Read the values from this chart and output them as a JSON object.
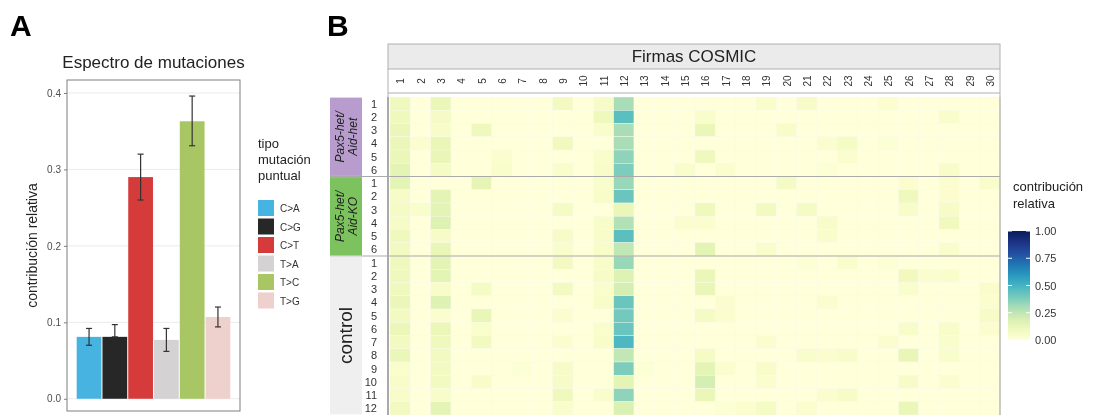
{
  "chart_data": [
    {
      "type": "bar",
      "title": "Espectro de mutaciones",
      "ylabel": "contribución relativa",
      "legend_title": "tipo mutación puntual",
      "legend": "right",
      "grid": "y",
      "annotations": [
        "A"
      ],
      "categories": [
        null
      ],
      "ylim": [
        -0.016,
        0.417
      ],
      "yticks": [
        {
          "value": 0,
          "label": "0.0"
        },
        0.1,
        0.2,
        0.3,
        0.4
      ],
      "series": [
        {
          "name": "C>A",
          "color": "#46b3e0",
          "values": [
            0.081
          ],
          "errors": [
            [
              0.07,
              0.092
            ]
          ]
        },
        {
          "name": "C>G",
          "color": "#272727",
          "values": [
            0.081
          ],
          "errors": [
            [
              0.081,
              0.097
            ]
          ]
        },
        {
          "name": "C>T",
          "color": "#d63b3b",
          "values": [
            0.29
          ],
          "errors": [
            [
              0.26,
              0.32
            ]
          ]
        },
        {
          "name": "T>A",
          "color": "#d4d2d3",
          "values": [
            0.077
          ],
          "errors": [
            [
              0.062,
              0.092
            ]
          ]
        },
        {
          "name": "T>C",
          "color": "#a8c663",
          "values": [
            0.363
          ],
          "errors": [
            [
              0.331,
              0.396
            ]
          ]
        },
        {
          "name": "T>G",
          "color": "#eed0cd",
          "values": [
            0.107
          ],
          "errors": [
            [
              0.094,
              0.12
            ]
          ]
        }
      ]
    },
    {
      "type": "heatmap",
      "xlabel": "Firmas COSMIC",
      "annotations": [
        "B",
        "Pax5-het/Aid-het",
        "Pax5-het/Aid-KO",
        "control"
      ],
      "clabel": "contribución relativa",
      "clim": [
        0,
        1
      ],
      "cticks": [
        {
          "value": 0,
          "label": "0.00"
        },
        {
          "value": 0.25,
          "label": "0.25"
        },
        {
          "value": 0.5,
          "label": "0.50"
        },
        {
          "value": 0.75,
          "label": "0.75"
        },
        {
          "value": 1,
          "label": "1.00"
        }
      ],
      "categories": [
        "1",
        "2",
        "3",
        "4",
        "5",
        "6",
        "7",
        "8",
        "9",
        "10",
        "11",
        "12",
        "13",
        "14",
        "15",
        "16",
        "17",
        "18",
        "19",
        "20",
        "21",
        "22",
        "23",
        "24",
        "25",
        "26",
        "27",
        "28",
        "29",
        "30"
      ],
      "y_categories": [
        "1",
        "2",
        "3",
        "4",
        "5",
        "6",
        "1",
        "2",
        "3",
        "4",
        "5",
        "6",
        "1",
        "2",
        "3",
        "4",
        "5",
        "6",
        "7",
        "8",
        "9",
        "10",
        "11",
        "12"
      ],
      "cells": [
        [
          0.1,
          0,
          0.12,
          0,
          0,
          0,
          0,
          0,
          0.08,
          0,
          0.06,
          0.3,
          0,
          0,
          0,
          0,
          0,
          0,
          0.04,
          0,
          0.06,
          0,
          0,
          0,
          0.03,
          0,
          0,
          0,
          0,
          0
        ],
        [
          0.1,
          0,
          0.07,
          0,
          0,
          0,
          0,
          0,
          0,
          0,
          0.1,
          0.45,
          0,
          0,
          0,
          0.04,
          0,
          0,
          0,
          0,
          0,
          0,
          0,
          0,
          0,
          0,
          0,
          0.04,
          0,
          0
        ],
        [
          0.12,
          0,
          0.05,
          0,
          0.1,
          0,
          0,
          0,
          0,
          0,
          0.04,
          0.3,
          0,
          0,
          0,
          0.12,
          0,
          0,
          0,
          0.05,
          0,
          0,
          0,
          0,
          0,
          0,
          0,
          0,
          0,
          0
        ],
        [
          0.12,
          0.03,
          0.13,
          0,
          0,
          0,
          0,
          0,
          0.09,
          0,
          0,
          0.3,
          0,
          0,
          0,
          0,
          0,
          0,
          0,
          0,
          0,
          0.03,
          0.07,
          0,
          0.02,
          0,
          0,
          0,
          0,
          0
        ],
        [
          0.12,
          0,
          0.13,
          0,
          0,
          0.03,
          0,
          0,
          0,
          0,
          0.04,
          0.35,
          0,
          0,
          0,
          0.1,
          0,
          0,
          0,
          0,
          0,
          0,
          0.03,
          0,
          0,
          0,
          0,
          0,
          0,
          0
        ],
        [
          0.15,
          0,
          0.07,
          0,
          0,
          0.04,
          0,
          0,
          0.04,
          0,
          0.05,
          0.38,
          0,
          0,
          0.04,
          0,
          0.03,
          0,
          0,
          0,
          0,
          0.02,
          0,
          0,
          0,
          0,
          0,
          0.05,
          0,
          0
        ],
        [
          0.15,
          0,
          0,
          0,
          0.14,
          0,
          0,
          0,
          0,
          0,
          0.04,
          0.33,
          0,
          0,
          0,
          0,
          0,
          0,
          0,
          0.07,
          0,
          0,
          0,
          0,
          0,
          0.03,
          0,
          0.03,
          0,
          0.04
        ],
        [
          0.06,
          0,
          0.15,
          0,
          0,
          0,
          0,
          0,
          0,
          0,
          0.05,
          0.42,
          0,
          0,
          0,
          0,
          0,
          0,
          0,
          0,
          0,
          0,
          0,
          0,
          0,
          0.1,
          0,
          0.03,
          0,
          0
        ],
        [
          0.07,
          0.04,
          0.15,
          0,
          0,
          0,
          0,
          0,
          0.07,
          0,
          0,
          0.12,
          0,
          0,
          0,
          0.1,
          0,
          0,
          0.08,
          0,
          0.07,
          0,
          0,
          0,
          0,
          0.05,
          0,
          0.06,
          0,
          0
        ],
        [
          0.06,
          0,
          0.17,
          0,
          0,
          0,
          0,
          0,
          0,
          0,
          0.05,
          0.28,
          0,
          0,
          0.03,
          0.03,
          0,
          0,
          0,
          0,
          0,
          0.05,
          0,
          0,
          0,
          0,
          0,
          0.09,
          0,
          0
        ],
        [
          0.1,
          0,
          0.06,
          0,
          0,
          0,
          0,
          0,
          0.06,
          0,
          0.05,
          0.45,
          0,
          0,
          0,
          0,
          0,
          0,
          0,
          0,
          0,
          0.04,
          0,
          0,
          0,
          0,
          0,
          0,
          0,
          0
        ],
        [
          0.08,
          0,
          0.13,
          0,
          0,
          0,
          0,
          0,
          0.04,
          0,
          0.05,
          0.25,
          0,
          0,
          0,
          0.15,
          0,
          0,
          0.04,
          0,
          0,
          0,
          0,
          0,
          0,
          0,
          0,
          0.04,
          0,
          0
        ],
        [
          0.1,
          0,
          0.15,
          0,
          0,
          0,
          0,
          0,
          0.08,
          0,
          0.05,
          0.33,
          0,
          0,
          0,
          0,
          0,
          0,
          0,
          0,
          0.02,
          0,
          0.04,
          0,
          0.02,
          0,
          0,
          0,
          0,
          0
        ],
        [
          0.1,
          0,
          0.15,
          0,
          0,
          0,
          0,
          0,
          0,
          0,
          0.06,
          0.17,
          0,
          0,
          0,
          0.12,
          0,
          0,
          0,
          0,
          0,
          0,
          0,
          0,
          0,
          0.09,
          0.03,
          0.04,
          0,
          0
        ],
        [
          0.1,
          0,
          0.05,
          0,
          0.07,
          0,
          0,
          0,
          0.08,
          0,
          0.04,
          0.2,
          0,
          0,
          0,
          0.13,
          0,
          0,
          0,
          0,
          0,
          0,
          0,
          0,
          0,
          0.04,
          0,
          0,
          0,
          0.04
        ],
        [
          0.12,
          0,
          0.17,
          0,
          0,
          0,
          0,
          0,
          0,
          0,
          0.05,
          0.42,
          0,
          0,
          0,
          0,
          0.03,
          0,
          0,
          0,
          0,
          0.03,
          0,
          0,
          0,
          0,
          0,
          0,
          0,
          0.03
        ],
        [
          0.08,
          0,
          0.03,
          0,
          0.13,
          0,
          0,
          0,
          0.03,
          0,
          0,
          0.4,
          0,
          0,
          0,
          0.07,
          0.03,
          0,
          0,
          0,
          0,
          0,
          0,
          0,
          0,
          0,
          0,
          0,
          0,
          0.06
        ],
        [
          0.12,
          0,
          0.12,
          0,
          0.04,
          0,
          0,
          0,
          0,
          0,
          0.04,
          0.42,
          0,
          0,
          0,
          0,
          0,
          0,
          0,
          0,
          0,
          0,
          0,
          0,
          0,
          0.05,
          0,
          0.05,
          0,
          0.03
        ],
        [
          0.08,
          0,
          0.1,
          0,
          0.08,
          0,
          0,
          0,
          0.03,
          0,
          0.05,
          0.48,
          0,
          0,
          0,
          0,
          0,
          0,
          0.03,
          0,
          0,
          0,
          0,
          0,
          0.03,
          0,
          0,
          0.04,
          0,
          0
        ],
        [
          0.12,
          0,
          0.08,
          0,
          0,
          0,
          0,
          0,
          0,
          0,
          0,
          0.25,
          0,
          0,
          0,
          0.07,
          0,
          0,
          0,
          0,
          0.04,
          0.03,
          0.05,
          0,
          0,
          0.13,
          0,
          0.04,
          0,
          0
        ],
        [
          0.04,
          0,
          0.08,
          0,
          0,
          0,
          0.02,
          0,
          0.06,
          0,
          0,
          0.38,
          0.02,
          0,
          0,
          0.15,
          0.03,
          0,
          0.05,
          0,
          0,
          0,
          0,
          0,
          0,
          0,
          0,
          0,
          0,
          0
        ],
        [
          0.05,
          0,
          0.08,
          0,
          0.05,
          0,
          0,
          0,
          0.06,
          0,
          0,
          0.15,
          0,
          0,
          0,
          0.2,
          0,
          0,
          0.03,
          0,
          0,
          0,
          0,
          0,
          0,
          0.06,
          0,
          0.03,
          0,
          0
        ],
        [
          0.05,
          0,
          0.05,
          0,
          0,
          0,
          0,
          0,
          0.1,
          0,
          0.04,
          0.35,
          0,
          0,
          0,
          0.12,
          0,
          0,
          0,
          0,
          0,
          0.03,
          0.06,
          0,
          0,
          0,
          0,
          0,
          0,
          0
        ],
        [
          0.08,
          0,
          0.15,
          0,
          0,
          0,
          0,
          0,
          0.04,
          0,
          0,
          0.18,
          0,
          0,
          0,
          0,
          0.02,
          0.03,
          0.07,
          0,
          0.03,
          0,
          0,
          0,
          0,
          0.12,
          0,
          0,
          0,
          0
        ]
      ]
    }
  ]
}
